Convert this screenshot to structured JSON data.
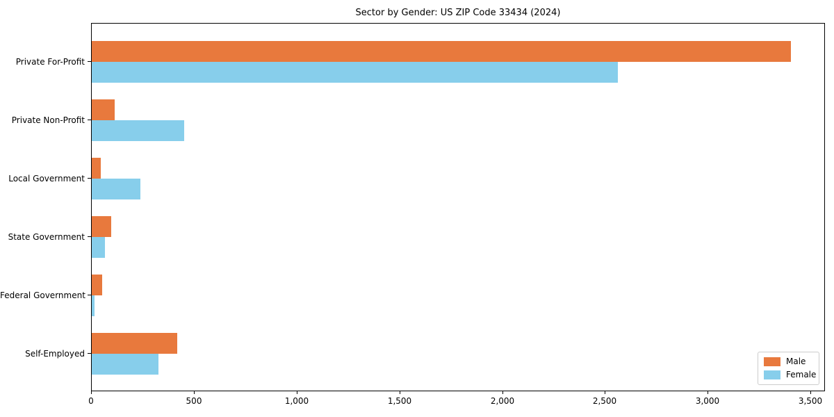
{
  "figure": {
    "background": "#ffffff"
  },
  "chart_data": {
    "type": "bar",
    "orientation": "horizontal",
    "title": "Sector by Gender: US ZIP Code 33434 (2024)",
    "categories": [
      "Private For-Profit",
      "Private Non-Profit",
      "Local Government",
      "State Government",
      "Federal Government",
      "Self-Employed"
    ],
    "series": [
      {
        "name": "Male",
        "color": "#e8793d",
        "values": [
          3400,
          110,
          45,
          95,
          50,
          415
        ]
      },
      {
        "name": "Female",
        "color": "#87ceeb",
        "values": [
          2560,
          450,
          235,
          65,
          15,
          325
        ]
      }
    ],
    "xlabel": "",
    "ylabel": "",
    "xlim": [
      0,
      3570
    ],
    "xticks": [
      0,
      500,
      1000,
      1500,
      2000,
      2500,
      3000,
      3500
    ],
    "xtick_labels": [
      "0",
      "500",
      "1,000",
      "1,500",
      "2,000",
      "2,500",
      "3,000",
      "3,500"
    ],
    "grid": false,
    "legend": {
      "position": "lower right",
      "entries": [
        "Male",
        "Female"
      ]
    }
  }
}
